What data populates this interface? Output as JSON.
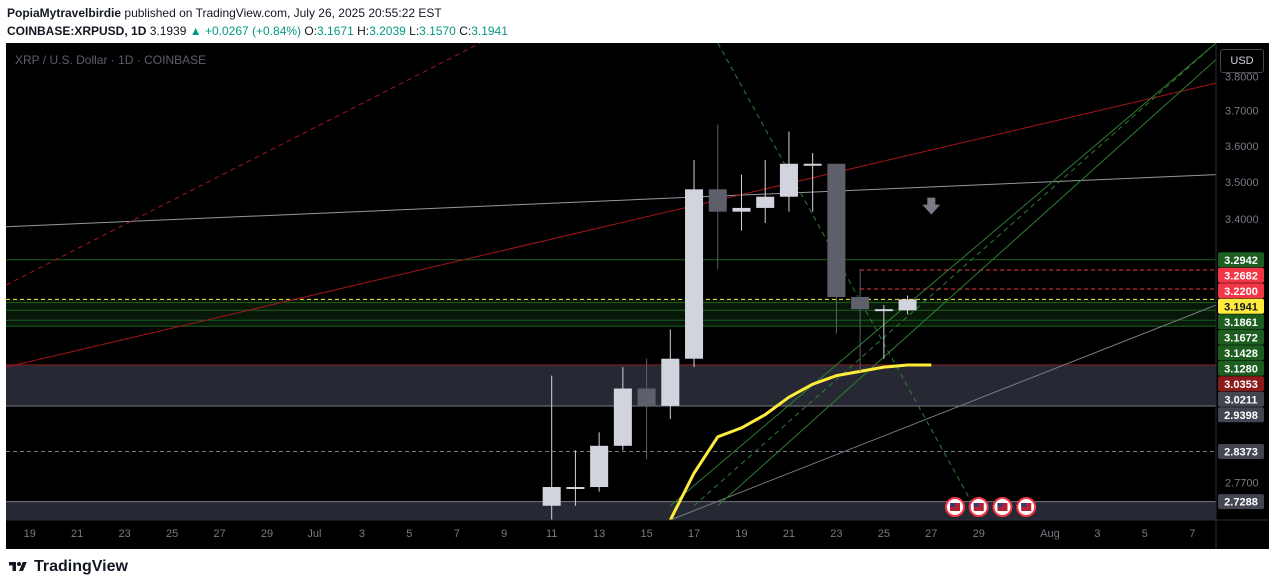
{
  "header": {
    "author": "PopiaMytravelbirdie",
    "published_text": "published on TradingView.com, July 26, 2025 20:55:22 EST",
    "symbol": "COINBASE:XRPUSD, 1D",
    "last": "3.1939",
    "change": "▲ +0.0267 (+0.84%)",
    "o_label": "O:",
    "o_value": "3.1671",
    "h_label": "H:",
    "h_value": "3.2039",
    "l_label": "L:",
    "l_value": "3.1570",
    "c_label": "C:",
    "c_value": "3.1941"
  },
  "chart_title": "XRP / U.S. Dollar · 1D · COINBASE",
  "currency_button": "USD",
  "footer": {
    "brand": "TradingView"
  },
  "colors": {
    "background": "#000000",
    "up_candle": "#d1d4dc",
    "down_candle": "#5d606b",
    "moving_average": "#ffeb3b",
    "green_label": "#1b5e20",
    "red_label": "#f23645",
    "yellow_label": "#ffeb3b",
    "dark_red_label": "#8b1a1a",
    "grey_label": "#434651",
    "text_green": "#089981"
  },
  "chart_data": {
    "type": "candlestick",
    "title": "XRP / U.S. Dollar · 1D · COINBASE",
    "y_scale": "log",
    "ylim": [
      2.69,
      3.9
    ],
    "y_ticks": [
      "3.8000",
      "3.7000",
      "3.6000",
      "3.5000",
      "3.4000",
      "2.7700"
    ],
    "x_ticks": [
      {
        "label": "19",
        "date": "2025-06-19"
      },
      {
        "label": "21",
        "date": "2025-06-21"
      },
      {
        "label": "23",
        "date": "2025-06-23"
      },
      {
        "label": "25",
        "date": "2025-06-25"
      },
      {
        "label": "27",
        "date": "2025-06-27"
      },
      {
        "label": "29",
        "date": "2025-06-29"
      },
      {
        "label": "Jul",
        "date": "2025-07-01"
      },
      {
        "label": "3",
        "date": "2025-07-03"
      },
      {
        "label": "5",
        "date": "2025-07-05"
      },
      {
        "label": "7",
        "date": "2025-07-07"
      },
      {
        "label": "9",
        "date": "2025-07-09"
      },
      {
        "label": "11",
        "date": "2025-07-11"
      },
      {
        "label": "13",
        "date": "2025-07-13"
      },
      {
        "label": "15",
        "date": "2025-07-15"
      },
      {
        "label": "17",
        "date": "2025-07-17"
      },
      {
        "label": "19",
        "date": "2025-07-19"
      },
      {
        "label": "21",
        "date": "2025-07-21"
      },
      {
        "label": "23",
        "date": "2025-07-23"
      },
      {
        "label": "25",
        "date": "2025-07-25"
      },
      {
        "label": "27",
        "date": "2025-07-27"
      },
      {
        "label": "29",
        "date": "2025-07-29"
      },
      {
        "label": "Aug",
        "date": "2025-08-01"
      },
      {
        "label": "3",
        "date": "2025-08-03"
      },
      {
        "label": "5",
        "date": "2025-08-05"
      },
      {
        "label": "7",
        "date": "2025-08-07"
      }
    ],
    "x_range": [
      "2025-06-18",
      "2025-08-08"
    ],
    "candles": [
      {
        "date": "2025-07-11",
        "open": 2.72,
        "high": 3.01,
        "low": 2.68,
        "close": 2.76
      },
      {
        "date": "2025-07-12",
        "open": 2.76,
        "high": 2.84,
        "low": 2.72,
        "close": 2.76
      },
      {
        "date": "2025-07-13",
        "open": 2.76,
        "high": 2.88,
        "low": 2.75,
        "close": 2.85
      },
      {
        "date": "2025-07-14",
        "open": 2.85,
        "high": 3.03,
        "low": 2.84,
        "close": 2.98
      },
      {
        "date": "2025-07-15",
        "open": 2.98,
        "high": 3.05,
        "low": 2.82,
        "close": 2.94
      },
      {
        "date": "2025-07-16",
        "open": 2.94,
        "high": 3.12,
        "low": 2.91,
        "close": 3.05
      },
      {
        "date": "2025-07-17",
        "open": 3.05,
        "high": 3.56,
        "low": 3.03,
        "close": 3.48
      },
      {
        "date": "2025-07-18",
        "open": 3.48,
        "high": 3.66,
        "low": 3.27,
        "close": 3.42
      },
      {
        "date": "2025-07-19",
        "open": 3.42,
        "high": 3.52,
        "low": 3.37,
        "close": 3.43
      },
      {
        "date": "2025-07-20",
        "open": 3.43,
        "high": 3.56,
        "low": 3.39,
        "close": 3.46
      },
      {
        "date": "2025-07-21",
        "open": 3.46,
        "high": 3.64,
        "low": 3.42,
        "close": 3.55
      },
      {
        "date": "2025-07-22",
        "open": 3.55,
        "high": 3.58,
        "low": 3.42,
        "close": 3.55
      },
      {
        "date": "2025-07-23",
        "open": 3.55,
        "high": 3.55,
        "low": 3.11,
        "close": 3.2
      },
      {
        "date": "2025-07-24",
        "open": 3.2,
        "high": 3.27,
        "low": 3.02,
        "close": 3.17
      },
      {
        "date": "2025-07-25",
        "open": 3.17,
        "high": 3.18,
        "low": 3.05,
        "close": 3.17
      },
      {
        "date": "2025-07-26",
        "open": 3.1671,
        "high": 3.2039,
        "low": 3.157,
        "close": 3.1941
      }
    ],
    "moving_average": [
      {
        "date": "2025-07-16",
        "value": 2.69
      },
      {
        "date": "2025-07-17",
        "value": 2.79
      },
      {
        "date": "2025-07-18",
        "value": 2.87
      },
      {
        "date": "2025-07-19",
        "value": 2.89
      },
      {
        "date": "2025-07-20",
        "value": 2.92
      },
      {
        "date": "2025-07-21",
        "value": 2.96
      },
      {
        "date": "2025-07-22",
        "value": 2.99
      },
      {
        "date": "2025-07-23",
        "value": 3.01
      },
      {
        "date": "2025-07-24",
        "value": 3.02
      },
      {
        "date": "2025-07-25",
        "value": 3.03
      },
      {
        "date": "2025-07-26",
        "value": 3.035
      },
      {
        "date": "2025-07-27",
        "value": 3.035
      }
    ],
    "price_labels": [
      {
        "value": 3.2942,
        "text": "3.2942",
        "style": "green"
      },
      {
        "value": 3.2682,
        "text": "3.2682",
        "style": "red"
      },
      {
        "value": 3.22,
        "text": "3.2200",
        "style": "red"
      },
      {
        "value": 3.1941,
        "text": "3.1941",
        "style": "yellow"
      },
      {
        "value": 3.1861,
        "text": "3.1861",
        "style": "green"
      },
      {
        "value": 3.1672,
        "text": "3.1672",
        "style": "green"
      },
      {
        "value": 3.1428,
        "text": "3.1428",
        "style": "green"
      },
      {
        "value": 3.128,
        "text": "3.1280",
        "style": "green"
      },
      {
        "value": 3.0353,
        "text": "3.0353",
        "style": "darkred"
      },
      {
        "value": 3.0211,
        "text": "3.0211",
        "style": "grey"
      },
      {
        "value": 2.9398,
        "text": "2.9398",
        "style": "grey"
      },
      {
        "value": 2.8373,
        "text": "2.8373",
        "style": "grey"
      },
      {
        "value": 2.7288,
        "text": "2.7288",
        "style": "grey"
      }
    ],
    "horizontal_levels": [
      {
        "value": 3.2942,
        "color": "#1b5e20",
        "dash": false
      },
      {
        "value": 3.2682,
        "color": "#f23645",
        "dash": true,
        "from_date": "2025-07-24"
      },
      {
        "value": 3.22,
        "color": "#f23645",
        "dash": true,
        "from_date": "2025-07-24"
      },
      {
        "value": 3.1941,
        "color": "#ffeb3b",
        "dash": true
      },
      {
        "value": 3.1861,
        "color": "#1b5e20",
        "dash": false
      },
      {
        "value": 3.1672,
        "color": "#1b5e20",
        "dash": false
      },
      {
        "value": 3.1428,
        "color": "#1b5e20",
        "dash": false
      },
      {
        "value": 3.128,
        "color": "#1b5e20",
        "dash": false
      },
      {
        "value": 3.0353,
        "color": "#8b1a1a",
        "dash": false
      },
      {
        "value": 2.9398,
        "color": "#787b86",
        "dash": false
      },
      {
        "value": 2.8373,
        "color": "#787b86",
        "dash": true
      },
      {
        "value": 2.7288,
        "color": "#787b86",
        "dash": false
      }
    ],
    "zones": [
      {
        "from": 3.128,
        "to": 3.1941,
        "color": "#1b5e20",
        "opacity": 0.25
      },
      {
        "from": 2.9398,
        "to": 3.0353,
        "color": "#2a2e39",
        "opacity": 0.9
      },
      {
        "from": 2.69,
        "to": 2.7288,
        "color": "#2a2e39",
        "opacity": 0.9
      }
    ],
    "trend_lines": [
      {
        "from": [
          "2025-06-18",
          3.38
        ],
        "to": [
          "2025-08-08",
          3.52
        ],
        "color": "#9598a1",
        "dash": false
      },
      {
        "from": [
          "2025-06-18",
          3.03
        ],
        "to": [
          "2025-08-08",
          3.78
        ],
        "color": "#a4161a",
        "dash": false
      },
      {
        "from": [
          "2025-06-18",
          3.23
        ],
        "to": [
          "2025-07-08",
          3.9
        ],
        "color": "#a4161a",
        "dash": true
      },
      {
        "from": [
          "2025-07-16",
          2.69
        ],
        "to": [
          "2025-08-08",
          3.18
        ],
        "color": "#787b86",
        "dash": false
      },
      {
        "from": [
          "2025-07-16",
          2.72
        ],
        "to": [
          "2025-08-08",
          3.9
        ],
        "color": "#2e7d32",
        "dash": false
      },
      {
        "from": [
          "2025-07-17",
          2.72
        ],
        "to": [
          "2025-08-08",
          3.9
        ],
        "color": "#2e7d32",
        "dash": true
      },
      {
        "from": [
          "2025-07-18",
          2.72
        ],
        "to": [
          "2025-08-08",
          3.85
        ],
        "color": "#2e7d32",
        "dash": false
      },
      {
        "from": [
          "2025-07-18",
          3.9
        ],
        "to": [
          "2025-07-29",
          2.7
        ],
        "color": "#2e7d32",
        "dash": true
      }
    ],
    "arrow_annotation": {
      "date": "2025-07-27",
      "value": 3.42,
      "direction": "down"
    },
    "event_markers": [
      {
        "date": "2025-07-28",
        "icon": "us-flag-icon"
      },
      {
        "date": "2025-07-29",
        "icon": "us-flag-icon"
      },
      {
        "date": "2025-07-30",
        "icon": "us-flag-icon"
      },
      {
        "date": "2025-07-31",
        "icon": "us-flag-icon"
      }
    ]
  }
}
